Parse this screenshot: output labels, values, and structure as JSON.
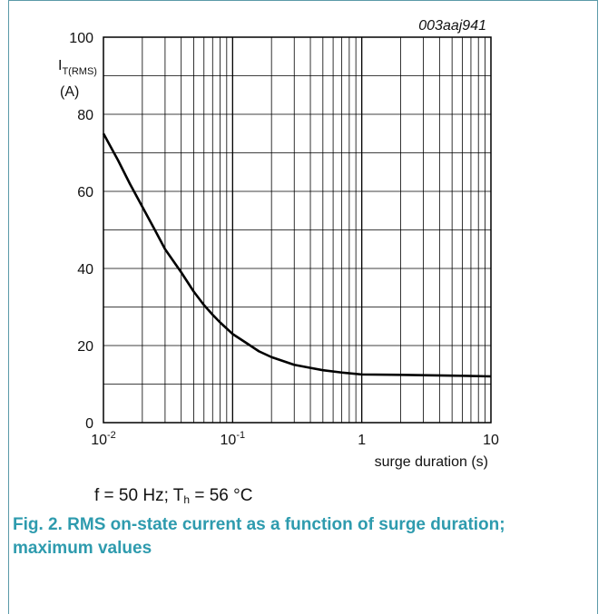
{
  "chart_data": {
    "type": "line",
    "code": "003aaj941",
    "ylabel": {
      "main": "I",
      "sub": "T(RMS)",
      "unit": "(A)"
    },
    "xlabel": "surge duration (s)",
    "xscale": "log",
    "xlim": [
      0.01,
      10
    ],
    "ylim": [
      0,
      100
    ],
    "yticks": [
      0,
      20,
      40,
      60,
      80,
      100
    ],
    "ytick_labels": [
      "0",
      "20",
      "40",
      "60",
      "80",
      "100"
    ],
    "xtick_labels": [
      {
        "value": 0.01,
        "base": "10",
        "exp": "-2"
      },
      {
        "value": 0.1,
        "base": "10",
        "exp": "-1"
      },
      {
        "value": 1,
        "base": "1",
        "exp": ""
      },
      {
        "value": 10,
        "base": "10",
        "exp": ""
      }
    ],
    "grid": true,
    "series": [
      {
        "x": [
          0.01,
          0.013,
          0.016,
          0.02,
          0.025,
          0.03,
          0.04,
          0.05,
          0.06,
          0.07,
          0.08,
          0.1,
          0.13,
          0.16,
          0.2,
          0.3,
          0.4,
          0.5,
          0.7,
          1,
          2,
          5,
          10
        ],
        "y": [
          75,
          68,
          62,
          56,
          50,
          45,
          39,
          34,
          30.5,
          28,
          26,
          23,
          20.5,
          18.5,
          17,
          15,
          14.2,
          13.6,
          13,
          12.5,
          12.4,
          12.2,
          12
        ]
      }
    ]
  },
  "caption": {
    "conditions_pre": "f = 50 Hz; T",
    "conditions_sub": "h",
    "conditions_post": " = 56 °C",
    "figure_title": "Fig. 2. RMS on-state current as a function of surge duration; maximum values"
  }
}
